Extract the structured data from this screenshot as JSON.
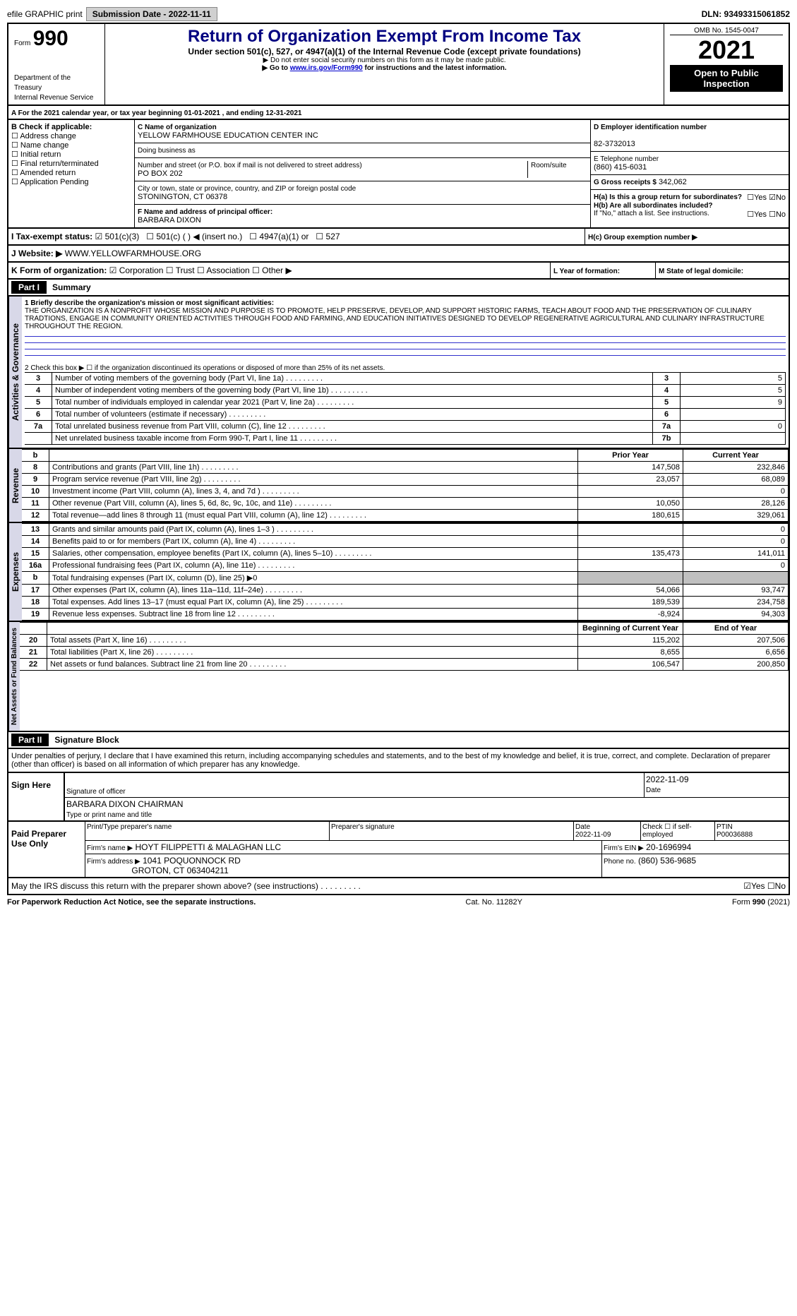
{
  "header": {
    "efile": "efile GRAPHIC print",
    "submission": "Submission Date - 2022-11-11",
    "dln": "DLN: 93493315061852",
    "form": "990",
    "form_prefix": "Form",
    "title": "Return of Organization Exempt From Income Tax",
    "subtitle1": "Under section 501(c), 527, or 4947(a)(1) of the Internal Revenue Code (except private foundations)",
    "subtitle2": "▶ Do not enter social security numbers on this form as it may be made public.",
    "subtitle3": "▶ Go to www.irs.gov/Form990 for instructions and the latest information.",
    "omb": "OMB No. 1545-0047",
    "year": "2021",
    "badge": "Open to Public Inspection",
    "dept": "Department of the Treasury",
    "irs": "Internal Revenue Service"
  },
  "sectionA": {
    "title": "A For the 2021 calendar year, or tax year beginning 01-01-2021    , and ending 12-31-2021",
    "b_label": "B Check if applicable:",
    "b_opts": [
      "Address change",
      "Name change",
      "Initial return",
      "Final return/terminated",
      "Amended return",
      "Application Pending"
    ],
    "c_label": "C Name of organization",
    "org_name": "YELLOW FARMHOUSE EDUCATION CENTER INC",
    "dba": "Doing business as",
    "street_label": "Number and street (or P.O. box if mail is not delivered to street address)",
    "room": "Room/suite",
    "street": "PO BOX 202",
    "city_label": "City or town, state or province, country, and ZIP or foreign postal code",
    "city": "STONINGTON, CT  06378",
    "d_label": "D Employer identification number",
    "ein": "82-3732013",
    "e_label": "E Telephone number",
    "phone": "(860) 415-6031",
    "g_label": "G Gross receipts $",
    "gross": "342,062",
    "f_label": "F  Name and address of principal officer:",
    "officer": "BARBARA DIXON",
    "ha": "H(a)  Is this a group return for subordinates?",
    "hb": "H(b)  Are all subordinates included?",
    "hb_note": "If \"No,\" attach a list. See instructions.",
    "hc": "H(c)  Group exemption number ▶",
    "yes": "Yes",
    "no": "No",
    "i_label": "I   Tax-exempt status:",
    "i_501c3": "501(c)(3)",
    "i_501c": "501(c) (  ) ◀ (insert no.)",
    "i_4947": "4947(a)(1) or",
    "i_527": "527",
    "j_label": "J   Website: ▶",
    "website": "WWW.YELLOWFARMHOUSE.ORG",
    "k_label": "K Form of organization:",
    "k_corp": "Corporation",
    "k_trust": "Trust",
    "k_assoc": "Association",
    "k_other": "Other ▶",
    "l_label": "L Year of formation:",
    "m_label": "M State of legal domicile:"
  },
  "part1": {
    "label": "Part I",
    "title": "Summary",
    "side1": "Activities & Governance",
    "side2": "Revenue",
    "side3": "Expenses",
    "side4": "Net Assets or Fund Balances",
    "line1_label": "1  Briefly describe the organization's mission or most significant activities:",
    "mission": "THE ORGANIZATION IS A NONPROFIT WHOSE MISSION AND PURPOSE IS TO PROMOTE, HELP PRESERVE, DEVELOP, AND SUPPORT HISTORIC FARMS, TEACH ABOUT FOOD AND THE PRESERVATION OF CULINARY TRADTIONS, ENGAGE IN COMMUNITY ORIENTED ACTIVITIES THROUGH FOOD AND FARMING, AND EDUCATION INITIATIVES DESIGNED TO DEVELOP REGENERATIVE AGRICULTURAL AND CULINARY INFRASTRUCTURE THROUGHOUT THE REGION.",
    "line2": "2    Check this box ▶ ☐  if the organization discontinued its operations or disposed of more than 25% of its net assets.",
    "rows_gov": [
      {
        "n": "3",
        "t": "Number of voting members of the governing body (Part VI, line 1a)",
        "c": "3",
        "v": "5"
      },
      {
        "n": "4",
        "t": "Number of independent voting members of the governing body (Part VI, line 1b)",
        "c": "4",
        "v": "5"
      },
      {
        "n": "5",
        "t": "Total number of individuals employed in calendar year 2021 (Part V, line 2a)",
        "c": "5",
        "v": "9"
      },
      {
        "n": "6",
        "t": "Total number of volunteers (estimate if necessary)",
        "c": "6",
        "v": ""
      },
      {
        "n": "7a",
        "t": "Total unrelated business revenue from Part VIII, column (C), line 12",
        "c": "7a",
        "v": "0"
      },
      {
        "n": "",
        "t": "Net unrelated business taxable income from Form 990-T, Part I, line 11",
        "c": "7b",
        "v": ""
      }
    ],
    "hdr_prior": "Prior Year",
    "hdr_curr": "Current Year",
    "hdr_b": "b",
    "rows_rev": [
      {
        "n": "8",
        "t": "Contributions and grants (Part VIII, line 1h)",
        "p": "147,508",
        "c": "232,846"
      },
      {
        "n": "9",
        "t": "Program service revenue (Part VIII, line 2g)",
        "p": "23,057",
        "c": "68,089"
      },
      {
        "n": "10",
        "t": "Investment income (Part VIII, column (A), lines 3, 4, and 7d )",
        "p": "",
        "c": "0"
      },
      {
        "n": "11",
        "t": "Other revenue (Part VIII, column (A), lines 5, 6d, 8c, 9c, 10c, and 11e)",
        "p": "10,050",
        "c": "28,126"
      },
      {
        "n": "12",
        "t": "Total revenue—add lines 8 through 11 (must equal Part VIII, column (A), line 12)",
        "p": "180,615",
        "c": "329,061"
      }
    ],
    "rows_exp": [
      {
        "n": "13",
        "t": "Grants and similar amounts paid (Part IX, column (A), lines 1–3 )",
        "p": "",
        "c": "0"
      },
      {
        "n": "14",
        "t": "Benefits paid to or for members (Part IX, column (A), line 4)",
        "p": "",
        "c": "0"
      },
      {
        "n": "15",
        "t": "Salaries, other compensation, employee benefits (Part IX, column (A), lines 5–10)",
        "p": "135,473",
        "c": "141,011"
      },
      {
        "n": "16a",
        "t": "Professional fundraising fees (Part IX, column (A), line 11e)",
        "p": "",
        "c": "0"
      },
      {
        "n": "b",
        "t": "Total fundraising expenses (Part IX, column (D), line 25) ▶0",
        "p": "grey",
        "c": "grey"
      },
      {
        "n": "17",
        "t": "Other expenses (Part IX, column (A), lines 11a–11d, 11f–24e)",
        "p": "54,066",
        "c": "93,747"
      },
      {
        "n": "18",
        "t": "Total expenses. Add lines 13–17 (must equal Part IX, column (A), line 25)",
        "p": "189,539",
        "c": "234,758"
      },
      {
        "n": "19",
        "t": "Revenue less expenses. Subtract line 18 from line 12",
        "p": "-8,924",
        "c": "94,303"
      }
    ],
    "hdr_beg": "Beginning of Current Year",
    "hdr_end": "End of Year",
    "rows_net": [
      {
        "n": "20",
        "t": "Total assets (Part X, line 16)",
        "p": "115,202",
        "c": "207,506"
      },
      {
        "n": "21",
        "t": "Total liabilities (Part X, line 26)",
        "p": "8,655",
        "c": "6,656"
      },
      {
        "n": "22",
        "t": "Net assets or fund balances. Subtract line 21 from line 20",
        "p": "106,547",
        "c": "200,850"
      }
    ]
  },
  "part2": {
    "label": "Part II",
    "title": "Signature Block",
    "perjury": "Under penalties of perjury, I declare that I have examined this return, including accompanying schedules and statements, and to the best of my knowledge and belief, it is true, correct, and complete. Declaration of preparer (other than officer) is based on all information of which preparer has any knowledge.",
    "sign_here": "Sign Here",
    "sig_officer": "Signature of officer",
    "date": "Date",
    "sig_date": "2022-11-09",
    "officer_name": "BARBARA DIXON  CHAIRMAN",
    "type_name": "Type or print name and title",
    "paid": "Paid Preparer Use Only",
    "prep_name_label": "Print/Type preparer's name",
    "prep_sig_label": "Preparer's signature",
    "prep_date": "2022-11-09",
    "check_self": "Check ☐ if self-employed",
    "ptin_label": "PTIN",
    "ptin": "P00036888",
    "firm_name_label": "Firm's name    ▶",
    "firm_name": "HOYT FILIPPETTI & MALAGHAN LLC",
    "firm_ein_label": "Firm's EIN ▶",
    "firm_ein": "20-1696994",
    "firm_addr_label": "Firm's address ▶",
    "firm_addr1": "1041 POQUONNOCK RD",
    "firm_addr2": "GROTON, CT  063404211",
    "firm_phone_label": "Phone no.",
    "firm_phone": "(860) 536-9685",
    "discuss": "May the IRS discuss this return with the preparer shown above? (see instructions)"
  },
  "footer": {
    "pra": "For Paperwork Reduction Act Notice, see the separate instructions.",
    "cat": "Cat. No. 11282Y",
    "form": "Form 990 (2021)"
  },
  "colors": {
    "link_url": "www.irs.gov/Form990"
  }
}
